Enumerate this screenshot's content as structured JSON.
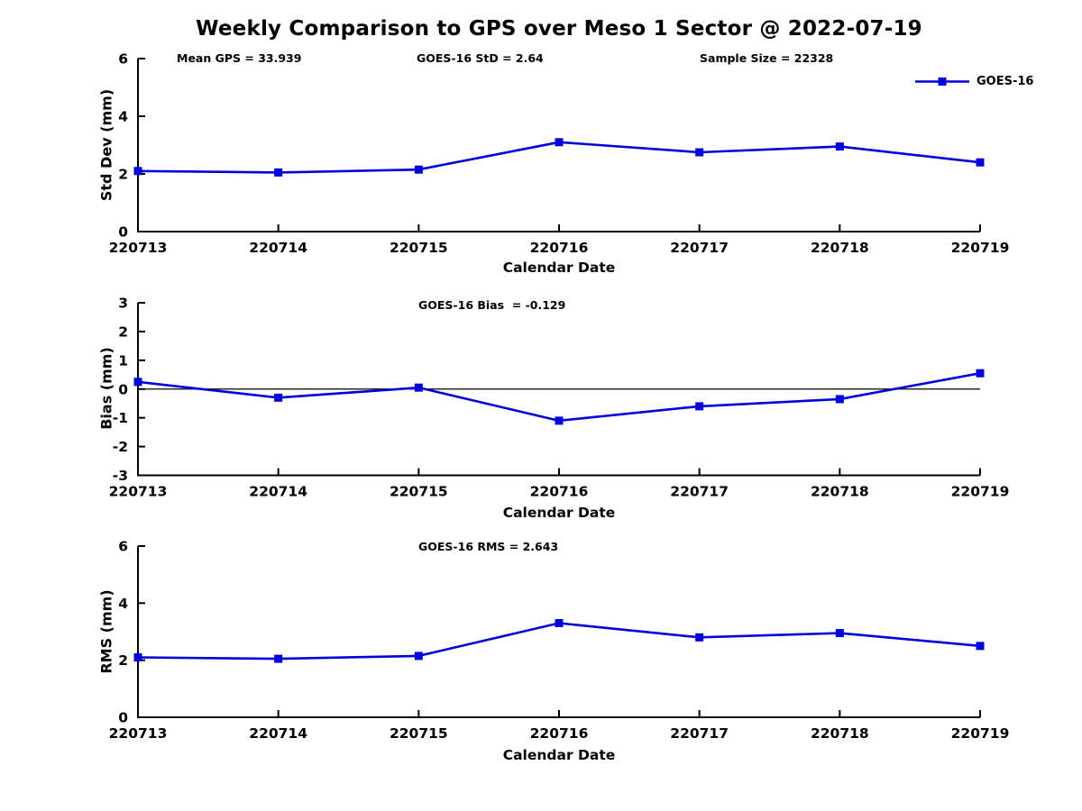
{
  "title": "Weekly Comparison to GPS over Meso 1 Sector @ 2022-07-19",
  "legend": {
    "label": "GOES-16",
    "series_color": "#0000dd"
  },
  "colors": {
    "series_blue": "#0000dd",
    "axis": "#000000",
    "text": "#000000",
    "background": "#ffffff"
  },
  "chart_data": [
    {
      "type": "line",
      "chart": "std-dev",
      "annotations": [
        "Mean GPS = 33.939",
        "GOES-16 StD = 2.64",
        "Sample Size = 22328"
      ],
      "categories": [
        "220713",
        "220714",
        "220715",
        "220716",
        "220717",
        "220718",
        "220719"
      ],
      "series": [
        {
          "name": "GOES-16",
          "color": "#0000dd",
          "marker": "square",
          "values": [
            2.1,
            2.05,
            2.15,
            3.1,
            2.75,
            2.95,
            2.4
          ]
        }
      ],
      "xlabel": "Calendar Date",
      "ylabel": "Std Dev (mm)",
      "ylim": [
        0,
        6
      ],
      "yticks": [
        0,
        2,
        4,
        6
      ],
      "grid": false,
      "zero_line": false,
      "legend_position": "upper right"
    },
    {
      "type": "line",
      "chart": "bias",
      "annotations": [
        "GOES-16 Bias  = -0.129"
      ],
      "categories": [
        "220713",
        "220714",
        "220715",
        "220716",
        "220717",
        "220718",
        "220719"
      ],
      "series": [
        {
          "name": "GOES-16",
          "color": "#0000dd",
          "marker": "square",
          "values": [
            0.25,
            -0.3,
            0.05,
            -1.1,
            -0.6,
            -0.35,
            0.55
          ]
        }
      ],
      "xlabel": "Calendar Date",
      "ylabel": "Bias (mm)",
      "ylim": [
        -3,
        3
      ],
      "yticks": [
        -3,
        -2,
        -1,
        0,
        1,
        2,
        3
      ],
      "grid": false,
      "zero_line": true,
      "legend_position": "none"
    },
    {
      "type": "line",
      "chart": "rms",
      "annotations": [
        "GOES-16 RMS = 2.643"
      ],
      "categories": [
        "220713",
        "220714",
        "220715",
        "220716",
        "220717",
        "220718",
        "220719"
      ],
      "series": [
        {
          "name": "GOES-16",
          "color": "#0000dd",
          "marker": "square",
          "values": [
            2.1,
            2.05,
            2.15,
            3.3,
            2.8,
            2.95,
            2.5
          ]
        }
      ],
      "xlabel": "Calendar Date",
      "ylabel": "RMS (mm)",
      "ylim": [
        0,
        6
      ],
      "yticks": [
        0,
        2,
        4,
        6
      ],
      "grid": false,
      "zero_line": false,
      "legend_position": "none"
    }
  ]
}
